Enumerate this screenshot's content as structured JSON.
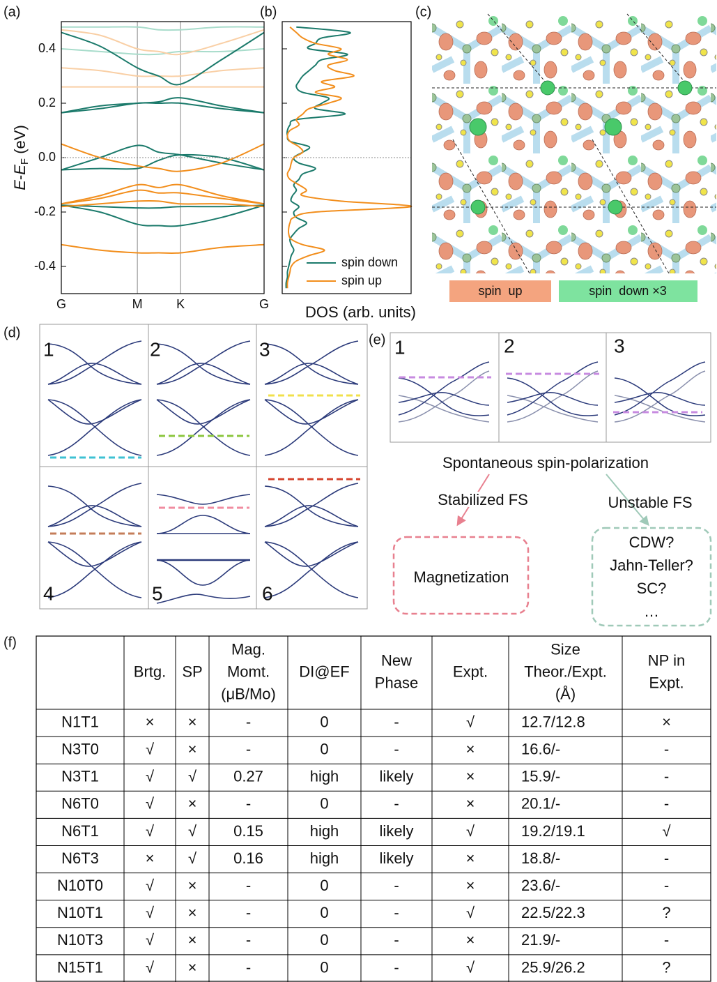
{
  "panel_labels": [
    "(a)",
    "(b)",
    "(c)",
    "(d)",
    "(e)",
    "(f)"
  ],
  "chart_data": [
    {
      "type": "line",
      "x": [
        0,
        0.19,
        0.375,
        0.48,
        0.588,
        0.79,
        1
      ],
      "xlim": [
        0,
        1
      ],
      "xticks": [
        {
          "value": 0,
          "label": "G"
        },
        {
          "value": 0.375,
          "label": "M"
        },
        {
          "value": 0.588,
          "label": "K"
        },
        {
          "value": 1,
          "label": "G"
        }
      ],
      "ylabel": [
        "E",
        "-",
        "E",
        "F",
        " (eV)"
      ],
      "ylim": [
        -0.5,
        0.5
      ],
      "yticks": [
        -0.4,
        -0.2,
        {
          "value": 0,
          "label": "0.0"
        },
        0.2,
        0.4
      ],
      "series": [
        {
          "color": "#a8dccb",
          "values": [
            0.48,
            0.48,
            0.48,
            0.47,
            0.47,
            0.48,
            0.48
          ]
        },
        {
          "color": "#a8dccb",
          "values": [
            0.4,
            0.39,
            0.38,
            0.38,
            0.39,
            0.39,
            0.4
          ]
        },
        {
          "color": "#f9cfa5",
          "values": [
            0.47,
            0.45,
            0.4,
            0.39,
            0.38,
            0.42,
            0.47
          ]
        },
        {
          "color": "#f9cfa5",
          "values": [
            0.33,
            0.32,
            0.3,
            0.3,
            0.3,
            0.32,
            0.33
          ]
        },
        {
          "color": "#f9cfa5",
          "values": [
            0.26,
            0.26,
            0.26,
            0.26,
            0.26,
            0.26,
            0.26
          ]
        },
        {
          "color": "#1b7a6b",
          "values": [
            0.46,
            0.41,
            0.33,
            0.3,
            0.27,
            0.36,
            0.46
          ]
        },
        {
          "color": "#1b7a6b",
          "values": [
            0.165,
            0.19,
            0.2,
            0.205,
            0.22,
            0.19,
            0.165
          ]
        },
        {
          "color": "#1b7a6b",
          "values": [
            0.165,
            0.18,
            0.2,
            0.2,
            0.2,
            0.18,
            0.165
          ]
        },
        {
          "color": "#1b7a6b",
          "values": [
            -0.045,
            0.0,
            0.045,
            0.02,
            0.01,
            -0.02,
            -0.045
          ]
        },
        {
          "color": "#1b7a6b",
          "values": [
            -0.045,
            -0.04,
            -0.04,
            -0.01,
            0.01,
            0.0,
            -0.045
          ]
        },
        {
          "color": "#1b7a6b",
          "values": [
            -0.175,
            -0.18,
            -0.185,
            -0.185,
            -0.18,
            -0.18,
            -0.175
          ]
        },
        {
          "color": "#1b7a6b",
          "values": [
            -0.175,
            -0.2,
            -0.245,
            -0.25,
            -0.25,
            -0.22,
            -0.175
          ]
        },
        {
          "color": "#f28e1c",
          "values": [
            0.05,
            0.0,
            -0.03,
            -0.04,
            -0.05,
            -0.02,
            0.05
          ]
        },
        {
          "color": "#f28e1c",
          "values": [
            -0.17,
            -0.14,
            -0.1,
            -0.11,
            -0.1,
            -0.14,
            -0.17
          ]
        },
        {
          "color": "#f28e1c",
          "values": [
            -0.17,
            -0.15,
            -0.12,
            -0.13,
            -0.13,
            -0.15,
            -0.17
          ]
        },
        {
          "color": "#f28e1c",
          "values": [
            -0.18,
            -0.17,
            -0.16,
            -0.16,
            -0.17,
            -0.17,
            -0.18
          ]
        },
        {
          "color": "#f28e1c",
          "values": [
            -0.32,
            -0.34,
            -0.35,
            -0.35,
            -0.35,
            -0.33,
            -0.32
          ]
        }
      ]
    },
    {
      "type": "line",
      "xlabel": "DOS (arb. units)",
      "xlim": [
        0,
        1
      ],
      "ylim": [
        -0.5,
        0.5
      ],
      "y": [
        -0.48,
        -0.46,
        -0.44,
        -0.42,
        -0.4,
        -0.38,
        -0.36,
        -0.34,
        -0.32,
        -0.3,
        -0.28,
        -0.26,
        -0.24,
        -0.22,
        -0.2,
        -0.18,
        -0.16,
        -0.14,
        -0.12,
        -0.1,
        -0.08,
        -0.06,
        -0.04,
        -0.02,
        0,
        0.02,
        0.04,
        0.06,
        0.08,
        0.1,
        0.12,
        0.14,
        0.16,
        0.18,
        0.2,
        0.22,
        0.24,
        0.26,
        0.28,
        0.3,
        0.32,
        0.34,
        0.36,
        0.38,
        0.4,
        0.42,
        0.44,
        0.46,
        0.48
      ],
      "legend": "lower right",
      "series": [
        {
          "name": "spin down",
          "color": "#1b7a6b",
          "values": [
            0.02,
            0.02,
            0.03,
            0.03,
            0.04,
            0.05,
            0.06,
            0.08,
            0.06,
            0.05,
            0.08,
            0.12,
            0.18,
            0.1,
            0.08,
            0.12,
            0.06,
            0.07,
            0.1,
            0.08,
            0.12,
            0.15,
            0.25,
            0.12,
            0.08,
            0.15,
            0.2,
            0.05,
            0.03,
            0.03,
            0.05,
            0.1,
            0.48,
            0.25,
            0.3,
            0.35,
            0.15,
            0.1,
            0.12,
            0.15,
            0.2,
            0.25,
            0.3,
            0.5,
            0.2,
            0.25,
            0.3,
            0.52,
            0.1
          ]
        },
        {
          "name": "spin up",
          "color": "#f28e1c",
          "values": [
            0.03,
            0.03,
            0.04,
            0.05,
            0.06,
            0.1,
            0.2,
            0.32,
            0.15,
            0.06,
            0.04,
            0.04,
            0.05,
            0.08,
            0.25,
            1.0,
            0.45,
            0.15,
            0.18,
            0.12,
            0.05,
            0.03,
            0.05,
            0.06,
            0.08,
            0.15,
            0.12,
            0.05,
            0.03,
            0.05,
            0.12,
            0.1,
            0.15,
            0.2,
            0.35,
            0.45,
            0.25,
            0.4,
            0.3,
            0.55,
            0.4,
            0.35,
            0.5,
            0.35,
            0.45,
            0.25,
            0.15,
            0.1,
            0.05
          ]
        }
      ]
    }
  ],
  "spin_density": {
    "legend": [
      "spin  up",
      "spin  down ×3"
    ]
  },
  "schematic_d": {
    "cells": [
      "1",
      "2",
      "3",
      "4",
      "5",
      "6"
    ]
  },
  "schematic_e": {
    "cells": [
      "1",
      "2",
      "3"
    ],
    "flow": {
      "top": "Spontaneous spin-polarization",
      "left": "Stabilized FS",
      "right": "Unstable FS",
      "left_box": "Magnetization",
      "right_box": [
        "CDW?",
        "Jahn-Teller?",
        "SC?",
        "…"
      ]
    }
  },
  "table": {
    "header": [
      [
        "Brtg."
      ],
      [
        "SP"
      ],
      [
        "Mag.",
        "Momt.",
        "(μB/Mo)"
      ],
      [
        "DI@EF"
      ],
      [
        "New",
        "Phase"
      ],
      [
        "Expt."
      ],
      [
        "Size",
        "Theor./Expt.",
        "(Å)"
      ],
      [
        "NP in",
        "Expt."
      ]
    ],
    "rows": [
      [
        "N1T1",
        "×",
        "×",
        "-",
        "0",
        "-",
        "√",
        "12.7/12.8",
        "×"
      ],
      [
        "N3T0",
        "√",
        "×",
        "-",
        "0",
        "-",
        "×",
        "16.6/-",
        "-"
      ],
      [
        "N3T1",
        "√",
        "√",
        "0.27",
        "high",
        "likely",
        "×",
        "15.9/-",
        "-"
      ],
      [
        "N6T0",
        "√",
        "×",
        "-",
        "0",
        "-",
        "×",
        "20.1/-",
        "-"
      ],
      [
        "N6T1",
        "√",
        "√",
        "0.15",
        "high",
        "likely",
        "√",
        "19.2/19.1",
        "√"
      ],
      [
        "N6T3",
        "×",
        "√",
        "0.16",
        "high",
        "likely",
        "×",
        "18.8/-",
        "-"
      ],
      [
        "N10T0",
        "√",
        "×",
        "-",
        "0",
        "-",
        "×",
        "23.6/-",
        "-"
      ],
      [
        "N10T1",
        "√",
        "×",
        "-",
        "0",
        "-",
        "√",
        "22.5/22.3",
        "?"
      ],
      [
        "N10T3",
        "√",
        "×",
        "-",
        "0",
        "-",
        "×",
        "21.9/-",
        "-"
      ],
      [
        "N15T1",
        "√",
        "×",
        "-",
        "0",
        "-",
        "√",
        "25.9/26.2",
        "?"
      ]
    ]
  }
}
